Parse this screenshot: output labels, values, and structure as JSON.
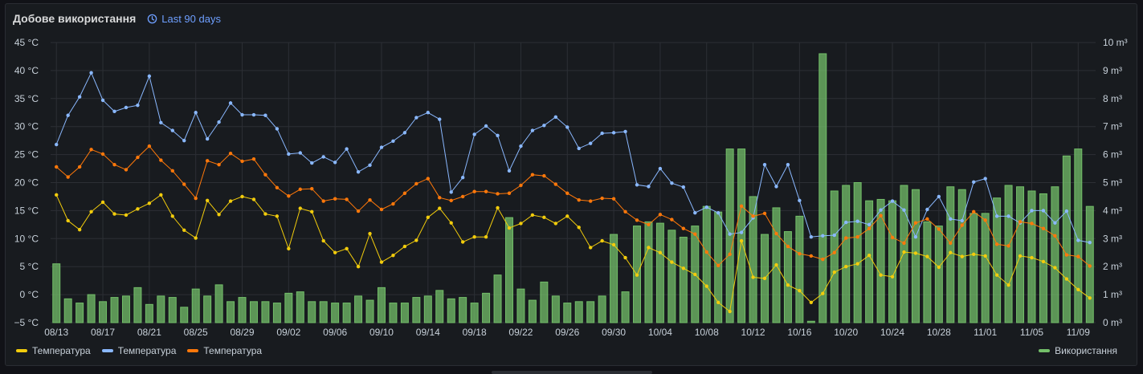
{
  "panel": {
    "title": "Добове використання",
    "time_range": "Last 90 days",
    "clock_icon": "clock-icon"
  },
  "legend": {
    "left": [
      "Температура",
      "Температура",
      "Температура"
    ],
    "right": [
      "Використання"
    ]
  },
  "colors": {
    "temp_yellow": "#f2cc0c",
    "temp_blue": "#8ab8ff",
    "temp_orange": "#ff780a",
    "usage_green": "#73bf69",
    "grid": "#2c2f35",
    "text": "#c7d0d9",
    "accent": "#6e9fff"
  },
  "chart_data": {
    "type": "bar+line",
    "x": [
      "08/13",
      "08/14",
      "08/15",
      "08/16",
      "08/17",
      "08/18",
      "08/19",
      "08/20",
      "08/21",
      "08/22",
      "08/23",
      "08/24",
      "08/25",
      "08/26",
      "08/27",
      "08/28",
      "08/29",
      "08/30",
      "08/31",
      "09/01",
      "09/02",
      "09/03",
      "09/04",
      "09/05",
      "09/06",
      "09/07",
      "09/08",
      "09/09",
      "09/10",
      "09/11",
      "09/12",
      "09/13",
      "09/14",
      "09/15",
      "09/16",
      "09/17",
      "09/18",
      "09/19",
      "09/20",
      "09/21",
      "09/22",
      "09/23",
      "09/24",
      "09/25",
      "09/26",
      "09/27",
      "09/28",
      "09/29",
      "09/30",
      "10/01",
      "10/02",
      "10/03",
      "10/04",
      "10/05",
      "10/06",
      "10/07",
      "10/08",
      "10/09",
      "10/10",
      "10/11",
      "10/12",
      "10/13",
      "10/14",
      "10/15",
      "10/16",
      "10/17",
      "10/18",
      "10/19",
      "10/20",
      "10/21",
      "10/22",
      "10/23",
      "10/24",
      "10/25",
      "10/26",
      "10/27",
      "10/28",
      "10/29",
      "10/30",
      "10/31",
      "11/01",
      "11/02",
      "11/03",
      "11/04",
      "11/05",
      "11/06",
      "11/07",
      "11/08",
      "11/09",
      "11/10"
    ],
    "x_tick_labels": [
      "08/13",
      "08/17",
      "08/21",
      "08/25",
      "08/29",
      "09/02",
      "09/06",
      "09/10",
      "09/14",
      "09/18",
      "09/22",
      "09/26",
      "09/30",
      "10/04",
      "10/08",
      "10/12",
      "10/16",
      "10/20",
      "10/24",
      "10/28",
      "11/01",
      "11/05",
      "11/09"
    ],
    "y_left": {
      "ticks": [
        "45 °C",
        "40 °C",
        "35 °C",
        "30 °C",
        "25 °C",
        "20 °C",
        "15 °C",
        "10 °C",
        "5 °C",
        "0 °C",
        "−5 °C"
      ],
      "range": [
        -5,
        45
      ]
    },
    "y_right": {
      "ticks": [
        "10 m³",
        "9 m³",
        "8 m³",
        "7 m³",
        "6 m³",
        "5 m³",
        "4 m³",
        "3 m³",
        "2 m³",
        "1 m³",
        "0 m³"
      ],
      "range": [
        0,
        10
      ]
    },
    "grid": true,
    "legend_position": "bottom",
    "bars": {
      "name": "Використання",
      "values": [
        2.1,
        0.85,
        0.7,
        1.0,
        0.75,
        0.9,
        0.95,
        1.25,
        0.65,
        0.95,
        0.9,
        0.55,
        1.2,
        0.95,
        1.35,
        0.75,
        0.9,
        0.75,
        0.75,
        0.7,
        1.05,
        1.1,
        0.75,
        0.75,
        0.7,
        0.7,
        0.95,
        0.8,
        1.25,
        0.7,
        0.7,
        0.9,
        0.95,
        1.15,
        0.85,
        0.9,
        0.7,
        1.05,
        1.7,
        3.75,
        1.2,
        0.8,
        1.45,
        0.95,
        0.7,
        0.75,
        0.75,
        0.95,
        3.15,
        1.1,
        3.45,
        3.6,
        3.55,
        3.3,
        3.05,
        3.45,
        4.15,
        3.95,
        6.2,
        6.2,
        4.5,
        3.15,
        4.1,
        3.25,
        3.8,
        0.05,
        9.6,
        4.7,
        4.9,
        5.0,
        4.35,
        4.4,
        4.35,
        4.9,
        4.75,
        3.6,
        3.45,
        4.85,
        4.75,
        3.9,
        3.9,
        4.45,
        4.9,
        4.85,
        4.7,
        4.6,
        4.85,
        5.95,
        6.2,
        4.15
      ]
    },
    "series": [
      {
        "name": "Температура",
        "color": "yellow",
        "values": [
          17.8,
          13.2,
          11.6,
          14.8,
          16.5,
          14.4,
          14.2,
          15.3,
          16.3,
          17.8,
          14.0,
          11.5,
          10.1,
          16.8,
          14.3,
          16.7,
          17.5,
          17.0,
          14.4,
          14.0,
          8.2,
          15.4,
          14.8,
          9.6,
          7.5,
          8.2,
          5.0,
          10.9,
          5.8,
          7.0,
          8.6,
          9.7,
          13.8,
          15.4,
          12.8,
          9.4,
          10.3,
          10.3,
          15.5,
          11.9,
          12.7,
          14.2,
          13.8,
          12.7,
          14.0,
          12.0,
          8.4,
          9.6,
          8.9,
          6.6,
          3.5,
          8.4,
          7.5,
          5.8,
          4.7,
          3.6,
          1.5,
          -1.4,
          -3.0,
          9.6,
          3.1,
          2.9,
          5.3,
          1.7,
          0.7,
          -1.4,
          0.2,
          4.0,
          5.0,
          5.5,
          7.0,
          3.5,
          3.2,
          7.6,
          7.4,
          6.8,
          4.9,
          7.5,
          6.8,
          7.2,
          6.9,
          3.5,
          1.7,
          6.9,
          6.6,
          5.9,
          4.8,
          2.8,
          0.9,
          -0.6
        ]
      },
      {
        "name": "Температура",
        "color": "blue",
        "values": [
          26.8,
          32.0,
          35.3,
          39.6,
          34.7,
          32.7,
          33.4,
          33.8,
          39.0,
          30.7,
          29.3,
          27.5,
          32.5,
          27.8,
          30.8,
          34.2,
          32.1,
          32.1,
          32.0,
          29.6,
          25.1,
          25.3,
          23.5,
          24.6,
          23.6,
          26.0,
          21.9,
          23.1,
          26.3,
          27.4,
          28.9,
          31.6,
          32.5,
          31.3,
          18.3,
          20.9,
          28.6,
          30.1,
          28.4,
          22.1,
          26.5,
          29.3,
          30.2,
          31.7,
          29.9,
          26.1,
          27.0,
          28.8,
          28.9,
          29.1,
          19.6,
          19.3,
          22.5,
          19.9,
          19.2,
          14.6,
          15.6,
          14.6,
          10.8,
          11.1,
          13.7,
          23.2,
          19.3,
          23.2,
          16.8,
          10.3,
          10.5,
          10.6,
          12.9,
          13.1,
          12.5,
          15.1,
          16.7,
          15.1,
          10.3,
          15.2,
          17.5,
          13.5,
          13.2,
          20.1,
          20.7,
          14.0,
          14.0,
          12.8,
          15.0,
          15.0,
          12.8,
          14.9,
          9.7,
          9.3
        ]
      },
      {
        "name": "Температура",
        "color": "orange",
        "values": [
          22.8,
          21.0,
          22.8,
          25.9,
          25.1,
          23.2,
          22.3,
          24.5,
          26.5,
          24.0,
          22.1,
          19.7,
          17.2,
          23.9,
          23.2,
          25.2,
          23.8,
          24.2,
          21.4,
          19.1,
          17.6,
          18.8,
          18.9,
          16.7,
          17.1,
          17.0,
          14.9,
          16.9,
          15.2,
          16.2,
          18.1,
          19.8,
          20.7,
          17.3,
          16.8,
          17.5,
          18.4,
          18.4,
          18.0,
          18.1,
          19.5,
          21.4,
          21.2,
          19.7,
          18.1,
          16.9,
          16.7,
          17.2,
          17.1,
          14.8,
          13.3,
          12.5,
          14.3,
          13.4,
          11.8,
          10.8,
          7.6,
          5.2,
          7.2,
          15.8,
          14.0,
          14.5,
          10.9,
          8.6,
          7.3,
          6.9,
          6.3,
          7.5,
          10.1,
          10.3,
          11.8,
          14.1,
          10.2,
          9.2,
          12.8,
          13.5,
          11.7,
          9.2,
          12.4,
          14.8,
          13.3,
          9.0,
          8.7,
          13.0,
          12.7,
          11.8,
          10.5,
          7.1,
          6.8,
          5.1
        ]
      }
    ]
  }
}
